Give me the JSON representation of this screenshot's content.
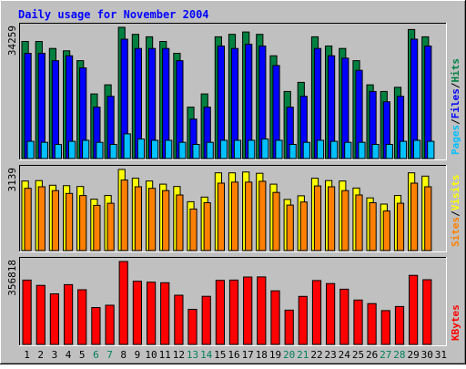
{
  "chart_data": {
    "type": "bar",
    "title": "Daily usage for November 2004",
    "days": [
      "1",
      "2",
      "3",
      "4",
      "5",
      "6",
      "7",
      "8",
      "9",
      "10",
      "11",
      "12",
      "13",
      "14",
      "15",
      "16",
      "17",
      "18",
      "19",
      "20",
      "21",
      "22",
      "23",
      "24",
      "25",
      "26",
      "27",
      "28",
      "29",
      "30",
      "31"
    ],
    "weekend_days": [
      "6",
      "7",
      "13",
      "14",
      "20",
      "21",
      "27",
      "28"
    ],
    "panels": [
      {
        "id": "hits",
        "max_label": "34259",
        "ymax": 34259,
        "legend": [
          "Pages",
          "/",
          "Files",
          "/",
          "Hits"
        ],
        "series": [
          {
            "name": "Hits",
            "color": "#008040",
            "values": [
              30580,
              30580,
              28740,
              28110,
              25560,
              16870,
              19240,
              34260,
              32420,
              31790,
              30580,
              27470,
              13410,
              16870,
              31790,
              32420,
              33050,
              32420,
              26840,
              17500,
              19880,
              31790,
              29370,
              28740,
              25560,
              19240,
              17500,
              18610,
              33680,
              31790,
              0
            ]
          },
          {
            "name": "Files",
            "color": "#0000ff",
            "values": [
              27470,
              27470,
              25560,
              26840,
              23670,
              13410,
              16240,
              31160,
              28740,
              28740,
              28740,
              25560,
              10300,
              13410,
              29370,
              28740,
              29840,
              29370,
              24300,
              13410,
              16240,
              28740,
              26840,
              26210,
              23040,
              17500,
              14830,
              16240,
              31160,
              29370,
              0
            ]
          },
          {
            "name": "Pages",
            "color": "#00c0ff",
            "values": [
              4500,
              4240,
              3690,
              4500,
              4760,
              4240,
              3690,
              6440,
              5090,
              4760,
              4760,
              4240,
              3690,
              4240,
              4760,
              4760,
              4760,
              5090,
              4760,
              3690,
              4240,
              4760,
              4500,
              4240,
              4240,
              3690,
              3690,
              4500,
              4760,
              4500,
              0
            ]
          }
        ]
      },
      {
        "id": "visits",
        "max_label": "3139",
        "ymax": 3139,
        "legend": [
          "Sites",
          "/",
          "Visits"
        ],
        "series": [
          {
            "name": "Visits",
            "color": "#ffff00",
            "values": [
              2690,
              2710,
              2530,
              2510,
              2480,
              1990,
              2130,
              3140,
              2800,
              2690,
              2570,
              2480,
              1890,
              2070,
              3010,
              3010,
              3040,
              2990,
              2570,
              1980,
              2120,
              2800,
              2710,
              2690,
              2420,
              2040,
              1800,
              2130,
              3010,
              2880,
              0
            ]
          },
          {
            "name": "Sites",
            "color": "#ff8000",
            "values": [
              2410,
              2470,
              2320,
              2210,
              2130,
              1750,
              1830,
              2730,
              2470,
              2410,
              2320,
              2150,
              1610,
              1850,
              2610,
              2650,
              2650,
              2680,
              2250,
              1760,
              1880,
              2500,
              2470,
              2320,
              2150,
              1850,
              1530,
              1830,
              2610,
              2470,
              0
            ]
          }
        ]
      },
      {
        "id": "kbytes",
        "max_label": "356818",
        "ymax": 356818,
        "legend": [
          "KBytes"
        ],
        "series": [
          {
            "name": "KBytes",
            "color": "#ff0000",
            "values": [
              276740,
              254030,
              217480,
              257380,
              235220,
              158800,
              168620,
              356820,
              271800,
              267690,
              265600,
              211710,
              150790,
              207040,
              275840,
              276740,
              290170,
              290630,
              230540,
              147400,
              206660,
              274990,
              262070,
              237590,
              190850,
              175530,
              145660,
              163140,
              297140,
              278570,
              0
            ]
          }
        ]
      }
    ]
  },
  "colors": {
    "title": "#0000ff",
    "weekday_label": "#000000",
    "weekend_label": "#00805c",
    "background": "#c0c0c0",
    "legend": {
      "Pages": "#00c0ff",
      "Files": "#0000ff",
      "Hits": "#008040",
      "Sites": "#ff8000",
      "Visits": "#ffff00",
      "KBytes": "#ff0000",
      "sep": "#000000"
    }
  }
}
